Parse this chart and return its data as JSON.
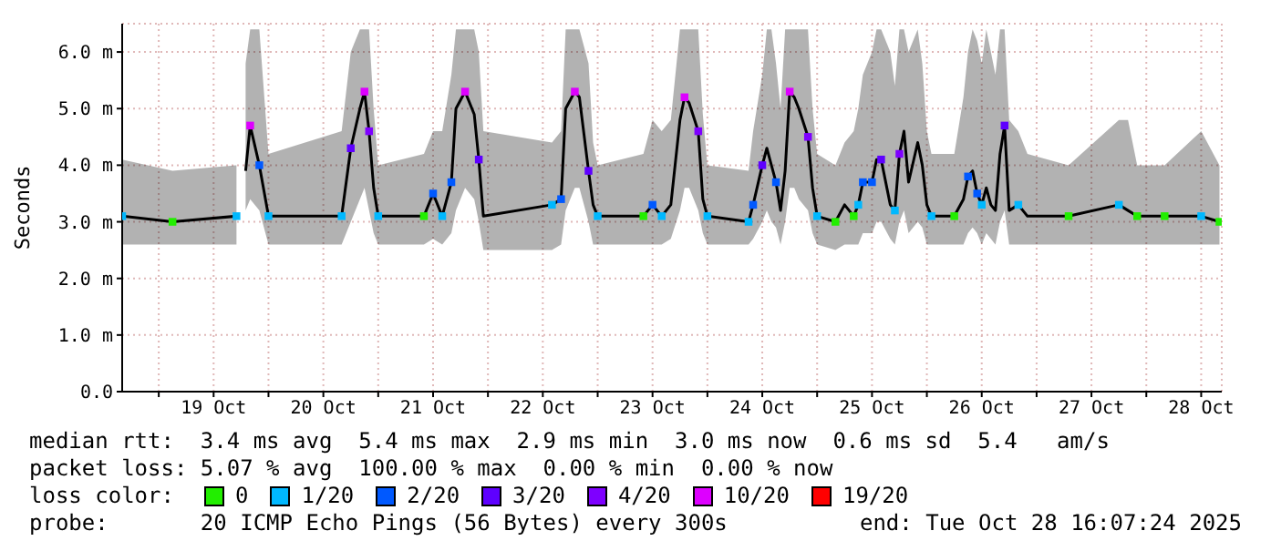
{
  "chart_data": {
    "type": "line",
    "ylabel": "Seconds",
    "legend_title": "loss color:",
    "legend": "bottom",
    "grid": true,
    "marker": "square",
    "xlim": [
      "2025-10-18T16:00",
      "2025-10-28T16:30"
    ],
    "xticks": [
      {
        "value": "2025-10-19T00:00",
        "label": null
      },
      {
        "value": "2025-10-19T12:00",
        "label": "19 Oct"
      },
      {
        "value": "2025-10-20T00:00",
        "label": null
      },
      {
        "value": "2025-10-20T12:00",
        "label": "20 Oct"
      },
      {
        "value": "2025-10-21T00:00",
        "label": null
      },
      {
        "value": "2025-10-21T12:00",
        "label": "21 Oct"
      },
      {
        "value": "2025-10-22T00:00",
        "label": null
      },
      {
        "value": "2025-10-22T12:00",
        "label": "22 Oct"
      },
      {
        "value": "2025-10-23T00:00",
        "label": null
      },
      {
        "value": "2025-10-23T12:00",
        "label": "23 Oct"
      },
      {
        "value": "2025-10-24T00:00",
        "label": null
      },
      {
        "value": "2025-10-24T12:00",
        "label": "24 Oct"
      },
      {
        "value": "2025-10-25T00:00",
        "label": null
      },
      {
        "value": "2025-10-25T12:00",
        "label": "25 Oct"
      },
      {
        "value": "2025-10-26T00:00",
        "label": null
      },
      {
        "value": "2025-10-26T12:00",
        "label": "26 Oct"
      },
      {
        "value": "2025-10-27T00:00",
        "label": null
      },
      {
        "value": "2025-10-27T12:00",
        "label": "27 Oct"
      },
      {
        "value": "2025-10-28T00:00",
        "label": null
      },
      {
        "value": "2025-10-28T12:00",
        "label": "28 Oct"
      }
    ],
    "ylim": [
      0,
      6.5
    ],
    "yticks": [
      {
        "value": 0,
        "label": "0.0"
      },
      {
        "value": 1,
        "label": "1.0 m"
      },
      {
        "value": 2,
        "label": "2.0 m"
      },
      {
        "value": 3,
        "label": "3.0 m"
      },
      {
        "value": 4,
        "label": "4.0 m"
      },
      {
        "value": 5,
        "label": "5.0 m"
      },
      {
        "value": 6,
        "label": "6.0 m"
      }
    ],
    "annotations": [
      "median rtt:  3.4 ms avg  5.4 ms max  2.9 ms min  3.0 ms now  0.6 ms sd  5.4   am/s",
      "packet loss: 5.07 % avg  100.00 % max  0.00 % min  0.00 % now",
      "probe:       20 ICMP Echo Pings (56 Bytes) every 300s",
      "end: Tue Oct 28 16:07:24 2025"
    ],
    "series": [
      {
        "color": "#000000",
        "marker": "none",
        "x": [
          "2025-10-18T16:00",
          "2025-10-19T03:00",
          "2025-10-19T17:00",
          "2025-10-19T18:00",
          "2025-10-19T19:00",
          "2025-10-19T20:00",
          "2025-10-19T22:00",
          "2025-10-20T00:00",
          "2025-10-20T16:00",
          "2025-10-20T18:00",
          "2025-10-20T20:00",
          "2025-10-20T21:00",
          "2025-10-20T22:00",
          "2025-10-20T23:00",
          "2025-10-21T00:00",
          "2025-10-21T10:00",
          "2025-10-21T12:00",
          "2025-10-21T14:00",
          "2025-10-21T16:00",
          "2025-10-21T17:00",
          "2025-10-21T19:00",
          "2025-10-21T21:00",
          "2025-10-21T22:00",
          "2025-10-21T23:00",
          "2025-10-22T14:00",
          "2025-10-22T16:00",
          "2025-10-22T17:00",
          "2025-10-22T19:00",
          "2025-10-22T20:00",
          "2025-10-22T22:00",
          "2025-10-22T23:00",
          "2025-10-23T00:00",
          "2025-10-23T10:00",
          "2025-10-23T12:00",
          "2025-10-23T14:00",
          "2025-10-23T16:00",
          "2025-10-23T18:00",
          "2025-10-23T19:00",
          "2025-10-23T20:00",
          "2025-10-23T22:00",
          "2025-10-23T23:00",
          "2025-10-24T00:00",
          "2025-10-24T09:00",
          "2025-10-24T10:00",
          "2025-10-24T12:00",
          "2025-10-24T13:00",
          "2025-10-24T14:00",
          "2025-10-24T15:00",
          "2025-10-24T16:00",
          "2025-10-24T17:00",
          "2025-10-24T18:00",
          "2025-10-24T19:00",
          "2025-10-24T20:00",
          "2025-10-24T22:00",
          "2025-10-24T23:00",
          "2025-10-25T00:00",
          "2025-10-25T04:00",
          "2025-10-25T06:00",
          "2025-10-25T08:00",
          "2025-10-25T09:00",
          "2025-10-25T10:00",
          "2025-10-25T12:00",
          "2025-10-25T13:00",
          "2025-10-25T14:00",
          "2025-10-25T16:00",
          "2025-10-25T17:00",
          "2025-10-25T18:00",
          "2025-10-25T19:00",
          "2025-10-25T20:00",
          "2025-10-25T22:00",
          "2025-10-25T23:00",
          "2025-10-26T00:00",
          "2025-10-26T01:00",
          "2025-10-26T06:00",
          "2025-10-26T08:00",
          "2025-10-26T09:00",
          "2025-10-26T10:00",
          "2025-10-26T11:00",
          "2025-10-26T12:00",
          "2025-10-26T13:00",
          "2025-10-26T14:00",
          "2025-10-26T15:00",
          "2025-10-26T16:00",
          "2025-10-26T17:00",
          "2025-10-26T18:00",
          "2025-10-26T20:00",
          "2025-10-26T22:00",
          "2025-10-27T07:00",
          "2025-10-27T18:00",
          "2025-10-27T20:00",
          "2025-10-27T22:00",
          "2025-10-28T04:00",
          "2025-10-28T12:00",
          "2025-10-28T16:00"
        ],
        "values": [
          3.1,
          3.0,
          3.1,
          null,
          3.9,
          4.7,
          4.0,
          3.1,
          3.1,
          4.3,
          5.0,
          5.3,
          4.6,
          3.6,
          3.1,
          3.1,
          3.5,
          3.1,
          3.7,
          5.0,
          5.3,
          4.9,
          4.1,
          3.1,
          3.3,
          3.4,
          5.0,
          5.3,
          5.2,
          3.9,
          3.3,
          3.1,
          3.1,
          3.3,
          3.1,
          3.3,
          4.8,
          5.2,
          5.1,
          4.6,
          3.4,
          3.1,
          3.0,
          3.3,
          4.0,
          4.3,
          4.0,
          3.7,
          3.2,
          3.9,
          5.3,
          5.2,
          5.0,
          4.5,
          3.6,
          3.1,
          3.0,
          3.3,
          3.1,
          3.3,
          3.7,
          3.7,
          4.1,
          4.1,
          3.3,
          3.2,
          4.2,
          4.6,
          3.7,
          4.4,
          4.0,
          3.3,
          3.1,
          3.1,
          3.4,
          3.8,
          3.9,
          3.5,
          3.3,
          3.6,
          3.3,
          3.2,
          4.2,
          4.7,
          3.2,
          3.3,
          3.1,
          3.1,
          3.3,
          3.2,
          3.1,
          3.1,
          3.1,
          3.0
        ],
        "lower": [
          2.6,
          2.6,
          2.6,
          null,
          3.2,
          3.4,
          3.2,
          2.6,
          2.6,
          3.0,
          3.4,
          3.6,
          3.2,
          2.8,
          2.6,
          2.6,
          2.7,
          2.6,
          2.8,
          3.2,
          3.6,
          3.4,
          3.0,
          2.5,
          2.5,
          2.6,
          3.2,
          3.6,
          3.6,
          3.0,
          2.6,
          2.6,
          2.6,
          2.6,
          2.6,
          2.7,
          3.2,
          3.6,
          3.6,
          3.2,
          2.8,
          2.6,
          2.6,
          2.7,
          3.0,
          3.2,
          3.0,
          2.9,
          2.6,
          3.0,
          3.6,
          3.6,
          3.4,
          3.2,
          2.8,
          2.6,
          2.5,
          2.6,
          2.6,
          2.6,
          2.8,
          2.8,
          3.0,
          3.0,
          2.7,
          2.6,
          3.0,
          3.2,
          2.8,
          3.0,
          2.9,
          2.6,
          2.6,
          2.6,
          2.6,
          2.8,
          2.9,
          2.8,
          2.6,
          2.8,
          2.7,
          2.6,
          3.0,
          3.2,
          2.6,
          2.6,
          2.6,
          2.6,
          2.6,
          2.6,
          2.6,
          2.6,
          2.6,
          2.6
        ],
        "upper": [
          4.1,
          3.9,
          4.0,
          null,
          5.8,
          6.4,
          6.4,
          4.2,
          4.6,
          6.0,
          6.4,
          6.4,
          6.4,
          5.0,
          4.0,
          4.2,
          4.6,
          4.6,
          5.6,
          6.4,
          6.4,
          6.4,
          6.0,
          4.6,
          4.4,
          4.6,
          6.4,
          6.4,
          6.4,
          5.8,
          4.4,
          4.0,
          4.2,
          4.8,
          4.6,
          4.8,
          6.4,
          6.4,
          6.4,
          6.4,
          4.9,
          4.0,
          3.9,
          4.6,
          5.6,
          6.4,
          6.4,
          5.8,
          5.0,
          6.4,
          6.4,
          6.4,
          6.4,
          6.4,
          5.0,
          4.2,
          4.0,
          4.4,
          4.6,
          5.0,
          5.6,
          6.0,
          6.4,
          6.4,
          6.0,
          5.4,
          6.4,
          6.4,
          6.0,
          6.4,
          5.8,
          4.6,
          4.2,
          4.2,
          5.2,
          6.0,
          6.4,
          6.2,
          5.8,
          6.4,
          6.0,
          5.6,
          6.4,
          6.4,
          4.8,
          4.6,
          4.2,
          4.0,
          4.8,
          4.8,
          4.0,
          4.0,
          4.6,
          4.0
        ]
      },
      {
        "type": "scatter",
        "name": "0",
        "color": "#22ee00",
        "x": [
          "2025-10-19T03:00",
          "2025-10-21T10:00",
          "2025-10-23T10:00",
          "2025-10-25T04:00",
          "2025-10-25T08:00",
          "2025-10-26T06:00",
          "2025-10-27T07:00",
          "2025-10-27T22:00",
          "2025-10-28T04:00",
          "2025-10-28T16:00"
        ],
        "values": [
          3.0,
          3.1,
          3.1,
          3.0,
          3.1,
          3.1,
          3.1,
          3.1,
          3.1,
          3.0
        ]
      },
      {
        "type": "scatter",
        "name": "1/20",
        "color": "#00b8ff",
        "x": [
          "2025-10-18T16:00",
          "2025-10-19T17:00",
          "2025-10-20T00:00",
          "2025-10-20T16:00",
          "2025-10-21T00:00",
          "2025-10-21T14:00",
          "2025-10-22T14:00",
          "2025-10-23T00:00",
          "2025-10-23T14:00",
          "2025-10-24T00:00",
          "2025-10-24T09:00",
          "2025-10-25T00:00",
          "2025-10-25T09:00",
          "2025-10-25T17:00",
          "2025-10-26T01:00",
          "2025-10-26T12:00",
          "2025-10-26T20:00",
          "2025-10-27T18:00",
          "2025-10-28T12:00"
        ],
        "values": [
          3.1,
          3.1,
          3.1,
          3.1,
          3.1,
          3.1,
          3.3,
          3.1,
          3.1,
          3.1,
          3.0,
          3.1,
          3.3,
          3.2,
          3.1,
          3.3,
          3.3,
          3.3,
          3.1
        ]
      },
      {
        "type": "scatter",
        "name": "2/20",
        "color": "#0059ff",
        "x": [
          "2025-10-19T22:00",
          "2025-10-21T12:00",
          "2025-10-21T16:00",
          "2025-10-22T16:00",
          "2025-10-23T12:00",
          "2025-10-24T10:00",
          "2025-10-24T15:00",
          "2025-10-25T10:00",
          "2025-10-25T12:00",
          "2025-10-26T09:00",
          "2025-10-26T11:00"
        ],
        "values": [
          4.0,
          3.5,
          3.7,
          3.4,
          3.3,
          3.3,
          3.7,
          3.7,
          3.7,
          3.8,
          3.5
        ]
      },
      {
        "type": "scatter",
        "name": "3/20",
        "color": "#5e00ff",
        "x": [
          "2025-10-20T18:00",
          "2025-10-21T22:00",
          "2025-10-22T22:00",
          "2025-10-24T12:00",
          "2025-10-25T14:00",
          "2025-10-26T17:00"
        ],
        "values": [
          4.3,
          4.1,
          3.9,
          4.0,
          4.1,
          4.7
        ]
      },
      {
        "type": "scatter",
        "name": "4/20",
        "color": "#7e00ff",
        "x": [
          "2025-10-20T22:00",
          "2025-10-23T22:00",
          "2025-10-24T22:00",
          "2025-10-25T18:00"
        ],
        "values": [
          4.6,
          4.6,
          4.5,
          4.2
        ]
      },
      {
        "type": "scatter",
        "name": "10/20",
        "color": "#dd00ff",
        "x": [
          "2025-10-19T20:00",
          "2025-10-20T21:00",
          "2025-10-21T19:00",
          "2025-10-22T19:00",
          "2025-10-23T19:00",
          "2025-10-24T18:00"
        ],
        "values": [
          4.7,
          5.3,
          5.3,
          5.3,
          5.2,
          5.3
        ]
      },
      {
        "type": "scatter",
        "name": "19/20",
        "color": "#ff0000"
      }
    ]
  }
}
